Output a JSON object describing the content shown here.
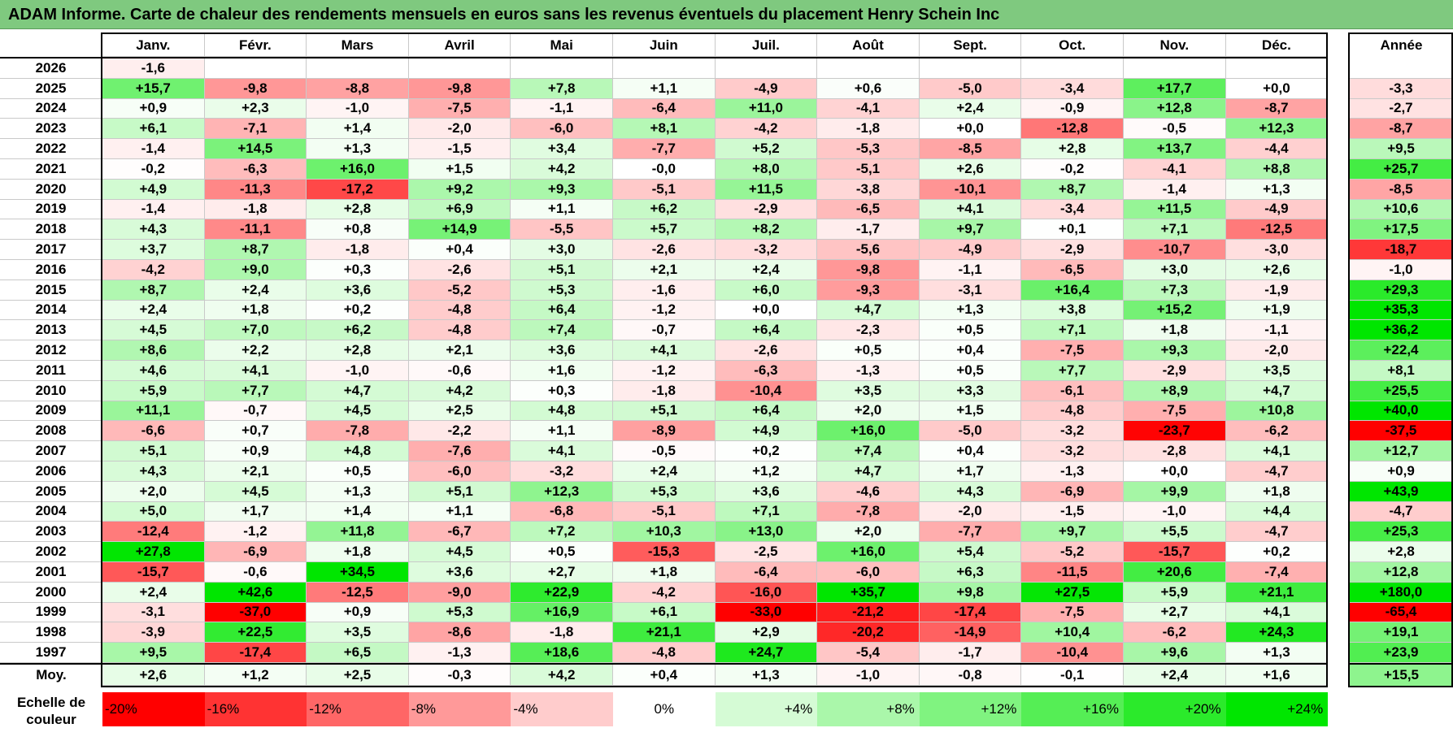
{
  "title": "ADAM Informe. Carte de chaleur des rendements mensuels en euros sans les revenus éventuels du placement Henry Schein Inc",
  "chart_data": {
    "type": "heatmap",
    "title": "ADAM Informe. Carte de chaleur des rendements mensuels en euros sans les revenus éventuels du placement Henry Schein Inc",
    "months": [
      "Janv.",
      "Févr.",
      "Mars",
      "Avril",
      "Mai",
      "Juin",
      "Juil.",
      "Août",
      "Sept.",
      "Oct.",
      "Nov.",
      "Déc."
    ],
    "year_header": "Année",
    "average_label": "Moy.",
    "rows": [
      {
        "year": "2026",
        "values": [
          "-1,6",
          "",
          "",
          "",
          "",
          "",
          "",
          "",
          "",
          "",
          "",
          ""
        ],
        "annual": ""
      },
      {
        "year": "2025",
        "values": [
          "+15,7",
          "-9,8",
          "-8,8",
          "-9,8",
          "+7,8",
          "+1,1",
          "-4,9",
          "+0,6",
          "-5,0",
          "-3,4",
          "+17,7",
          "+0,0"
        ],
        "annual": "-3,3"
      },
      {
        "year": "2024",
        "values": [
          "+0,9",
          "+2,3",
          "-1,0",
          "-7,5",
          "-1,1",
          "-6,4",
          "+11,0",
          "-4,1",
          "+2,4",
          "-0,9",
          "+12,8",
          "-8,7"
        ],
        "annual": "-2,7"
      },
      {
        "year": "2023",
        "values": [
          "+6,1",
          "-7,1",
          "+1,4",
          "-2,0",
          "-6,0",
          "+8,1",
          "-4,2",
          "-1,8",
          "+0,0",
          "-12,8",
          "-0,5",
          "+12,3"
        ],
        "annual": "-8,7"
      },
      {
        "year": "2022",
        "values": [
          "-1,4",
          "+14,5",
          "+1,3",
          "-1,5",
          "+3,4",
          "-7,7",
          "+5,2",
          "-5,3",
          "-8,5",
          "+2,8",
          "+13,7",
          "-4,4"
        ],
        "annual": "+9,5"
      },
      {
        "year": "2021",
        "values": [
          "-0,2",
          "-6,3",
          "+16,0",
          "+1,5",
          "+4,2",
          "-0,0",
          "+8,0",
          "-5,1",
          "+2,6",
          "-0,2",
          "-4,1",
          "+8,8"
        ],
        "annual": "+25,7"
      },
      {
        "year": "2020",
        "values": [
          "+4,9",
          "-11,3",
          "-17,2",
          "+9,2",
          "+9,3",
          "-5,1",
          "+11,5",
          "-3,8",
          "-10,1",
          "+8,7",
          "-1,4",
          "+1,3"
        ],
        "annual": "-8,5"
      },
      {
        "year": "2019",
        "values": [
          "-1,4",
          "-1,8",
          "+2,8",
          "+6,9",
          "+1,1",
          "+6,2",
          "-2,9",
          "-6,5",
          "+4,1",
          "-3,4",
          "+11,5",
          "-4,9"
        ],
        "annual": "+10,6"
      },
      {
        "year": "2018",
        "values": [
          "+4,3",
          "-11,1",
          "+0,8",
          "+14,9",
          "-5,5",
          "+5,7",
          "+8,2",
          "-1,7",
          "+9,7",
          "+0,1",
          "+7,1",
          "-12,5"
        ],
        "annual": "+17,5"
      },
      {
        "year": "2017",
        "values": [
          "+3,7",
          "+8,7",
          "-1,8",
          "+0,4",
          "+3,0",
          "-2,6",
          "-3,2",
          "-5,6",
          "-4,9",
          "-2,9",
          "-10,7",
          "-3,0"
        ],
        "annual": "-18,7"
      },
      {
        "year": "2016",
        "values": [
          "-4,2",
          "+9,0",
          "+0,3",
          "-2,6",
          "+5,1",
          "+2,1",
          "+2,4",
          "-9,8",
          "-1,1",
          "-6,5",
          "+3,0",
          "+2,6"
        ],
        "annual": "-1,0"
      },
      {
        "year": "2015",
        "values": [
          "+8,7",
          "+2,4",
          "+3,6",
          "-5,2",
          "+5,3",
          "-1,6",
          "+6,0",
          "-9,3",
          "-3,1",
          "+16,4",
          "+7,3",
          "-1,9"
        ],
        "annual": "+29,3"
      },
      {
        "year": "2014",
        "values": [
          "+2,4",
          "+1,8",
          "+0,2",
          "-4,8",
          "+6,4",
          "-1,2",
          "+0,0",
          "+4,7",
          "+1,3",
          "+3,8",
          "+15,2",
          "+1,9"
        ],
        "annual": "+35,3"
      },
      {
        "year": "2013",
        "values": [
          "+4,5",
          "+7,0",
          "+6,2",
          "-4,8",
          "+7,4",
          "-0,7",
          "+6,4",
          "-2,3",
          "+0,5",
          "+7,1",
          "+1,8",
          "-1,1"
        ],
        "annual": "+36,2"
      },
      {
        "year": "2012",
        "values": [
          "+8,6",
          "+2,2",
          "+2,8",
          "+2,1",
          "+3,6",
          "+4,1",
          "-2,6",
          "+0,5",
          "+0,4",
          "-7,5",
          "+9,3",
          "-2,0"
        ],
        "annual": "+22,4"
      },
      {
        "year": "2011",
        "values": [
          "+4,6",
          "+4,1",
          "-1,0",
          "-0,6",
          "+1,6",
          "-1,2",
          "-6,3",
          "-1,3",
          "+0,5",
          "+7,7",
          "-2,9",
          "+3,5"
        ],
        "annual": "+8,1"
      },
      {
        "year": "2010",
        "values": [
          "+5,9",
          "+7,7",
          "+4,7",
          "+4,2",
          "+0,3",
          "-1,8",
          "-10,4",
          "+3,5",
          "+3,3",
          "-6,1",
          "+8,9",
          "+4,7"
        ],
        "annual": "+25,5"
      },
      {
        "year": "2009",
        "values": [
          "+11,1",
          "-0,7",
          "+4,5",
          "+2,5",
          "+4,8",
          "+5,1",
          "+6,4",
          "+2,0",
          "+1,5",
          "-4,8",
          "-7,5",
          "+10,8"
        ],
        "annual": "+40,0"
      },
      {
        "year": "2008",
        "values": [
          "-6,6",
          "+0,7",
          "-7,8",
          "-2,2",
          "+1,1",
          "-8,9",
          "+4,9",
          "+16,0",
          "-5,0",
          "-3,2",
          "-23,7",
          "-6,2"
        ],
        "annual": "-37,5"
      },
      {
        "year": "2007",
        "values": [
          "+5,1",
          "+0,9",
          "+4,8",
          "-7,6",
          "+4,1",
          "-0,5",
          "+0,2",
          "+7,4",
          "+0,4",
          "-3,2",
          "-2,8",
          "+4,1"
        ],
        "annual": "+12,7"
      },
      {
        "year": "2006",
        "values": [
          "+4,3",
          "+2,1",
          "+0,5",
          "-6,0",
          "-3,2",
          "+2,4",
          "+1,2",
          "+4,7",
          "+1,7",
          "-1,3",
          "+0,0",
          "-4,7"
        ],
        "annual": "+0,9"
      },
      {
        "year": "2005",
        "values": [
          "+2,0",
          "+4,5",
          "+1,3",
          "+5,1",
          "+12,3",
          "+5,3",
          "+3,6",
          "-4,6",
          "+4,3",
          "-6,9",
          "+9,9",
          "+1,8"
        ],
        "annual": "+43,9"
      },
      {
        "year": "2004",
        "values": [
          "+5,0",
          "+1,7",
          "+1,4",
          "+1,1",
          "-6,8",
          "-5,1",
          "+7,1",
          "-7,8",
          "-2,0",
          "-1,5",
          "-1,0",
          "+4,4"
        ],
        "annual": "-4,7"
      },
      {
        "year": "2003",
        "values": [
          "-12,4",
          "-1,2",
          "+11,8",
          "-6,7",
          "+7,2",
          "+10,3",
          "+13,0",
          "+2,0",
          "-7,7",
          "+9,7",
          "+5,5",
          "-4,7"
        ],
        "annual": "+25,3"
      },
      {
        "year": "2002",
        "values": [
          "+27,8",
          "-6,9",
          "+1,8",
          "+4,5",
          "+0,5",
          "-15,3",
          "-2,5",
          "+16,0",
          "+5,4",
          "-5,2",
          "-15,7",
          "+0,2"
        ],
        "annual": "+2,8"
      },
      {
        "year": "2001",
        "values": [
          "-15,7",
          "-0,6",
          "+34,5",
          "+3,6",
          "+2,7",
          "+1,8",
          "-6,4",
          "-6,0",
          "+6,3",
          "-11,5",
          "+20,6",
          "-7,4"
        ],
        "annual": "+12,8"
      },
      {
        "year": "2000",
        "values": [
          "+2,4",
          "+42,6",
          "-12,5",
          "-9,0",
          "+22,9",
          "-4,2",
          "-16,0",
          "+35,7",
          "+9,8",
          "+27,5",
          "+5,9",
          "+21,1"
        ],
        "annual": "+180,0"
      },
      {
        "year": "1999",
        "values": [
          "-3,1",
          "-37,0",
          "+0,9",
          "+5,3",
          "+16,9",
          "+6,1",
          "-33,0",
          "-21,2",
          "-17,4",
          "-7,5",
          "+2,7",
          "+4,1"
        ],
        "annual": "-65,4"
      },
      {
        "year": "1998",
        "values": [
          "-3,9",
          "+22,5",
          "+3,5",
          "-8,6",
          "-1,8",
          "+21,1",
          "+2,9",
          "-20,2",
          "-14,9",
          "+10,4",
          "-6,2",
          "+24,3"
        ],
        "annual": "+19,1"
      },
      {
        "year": "1997",
        "values": [
          "+9,5",
          "-17,4",
          "+6,5",
          "-1,3",
          "+18,6",
          "-4,8",
          "+24,7",
          "-5,4",
          "-1,7",
          "-10,4",
          "+9,6",
          "+1,3"
        ],
        "annual": "+23,9"
      }
    ],
    "averages": [
      "+2,6",
      "+1,2",
      "+2,5",
      "-0,3",
      "+4,2",
      "+0,4",
      "+1,3",
      "-1,0",
      "-0,8",
      "-0,1",
      "+2,4",
      "+1,6"
    ],
    "average_annual": "+15,5",
    "color_scale": {
      "label_line1": "Echelle de",
      "label_line2": "couleur",
      "steps": [
        "-20%",
        "-16%",
        "-12%",
        "-8%",
        "-4%",
        "0%",
        "+4%",
        "+8%",
        "+12%",
        "+16%",
        "+20%",
        "+24%"
      ],
      "step_values": [
        -20,
        -16,
        -12,
        -8,
        -4,
        0,
        4,
        8,
        12,
        16,
        20,
        24
      ]
    },
    "colors": {
      "negative_max": "#ff0000",
      "neutral": "#ffffff",
      "positive_max": "#00e600",
      "title_bg": "#7fc97f"
    }
  }
}
